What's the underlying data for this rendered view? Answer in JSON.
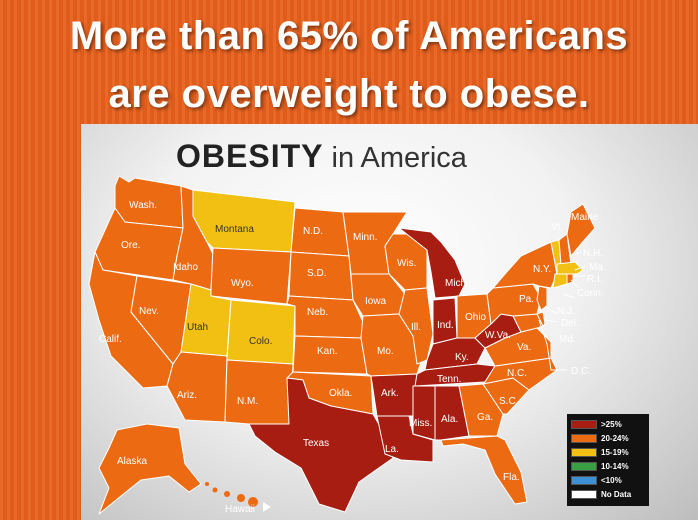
{
  "headline": {
    "line1": "More than 65% of Americans",
    "line2": "are overweight to obese."
  },
  "map": {
    "title_bold": "OBESITY",
    "title_rest": " in America",
    "colors": {
      "gt25": "#a81d12",
      "c20_24": "#ec6a12",
      "c15_19": "#f2c012",
      "c10_14": "#39a043",
      "lt10": "#3d8fd6",
      "nodata": "#ffffff"
    },
    "states": {
      "wash": {
        "label": "Wash.",
        "category": "20-24%"
      },
      "ore": {
        "label": "Ore.",
        "category": "20-24%"
      },
      "calif": {
        "label": "Calif.",
        "category": "20-24%"
      },
      "nev": {
        "label": "Nev.",
        "category": "20-24%"
      },
      "idaho": {
        "label": "Idaho",
        "category": "20-24%"
      },
      "montana": {
        "label": "Montana",
        "category": "15-19%"
      },
      "wyo": {
        "label": "Wyo.",
        "category": "20-24%"
      },
      "utah": {
        "label": "Utah",
        "category": "15-19%"
      },
      "colo": {
        "label": "Colo.",
        "category": "15-19%"
      },
      "ariz": {
        "label": "Ariz.",
        "category": "20-24%"
      },
      "nm": {
        "label": "N.M.",
        "category": "20-24%"
      },
      "nd": {
        "label": "N.D.",
        "category": "20-24%"
      },
      "sd": {
        "label": "S.D.",
        "category": "20-24%"
      },
      "neb": {
        "label": "Neb.",
        "category": "20-24%"
      },
      "kan": {
        "label": "Kan.",
        "category": "20-24%"
      },
      "okla": {
        "label": "Okla.",
        "category": "20-24%"
      },
      "texas": {
        "label": "Texas",
        "category": ">25%"
      },
      "minn": {
        "label": "Minn.",
        "category": "20-24%"
      },
      "iowa": {
        "label": "Iowa",
        "category": "20-24%"
      },
      "mo": {
        "label": "Mo.",
        "category": "20-24%"
      },
      "ark": {
        "label": "Ark.",
        "category": ">25%"
      },
      "la": {
        "label": "La.",
        "category": ">25%"
      },
      "wis": {
        "label": "Wis.",
        "category": "20-24%"
      },
      "ill": {
        "label": "Ill.",
        "category": "20-24%"
      },
      "mich": {
        "label": "Mich.",
        "category": ">25%"
      },
      "ind": {
        "label": "Ind.",
        "category": ">25%"
      },
      "ohio": {
        "label": "Ohio",
        "category": "20-24%"
      },
      "ky": {
        "label": "Ky.",
        "category": ">25%"
      },
      "tenn": {
        "label": "Tenn.",
        "category": ">25%"
      },
      "miss": {
        "label": "Miss.",
        "category": ">25%"
      },
      "ala": {
        "label": "Ala.",
        "category": ">25%"
      },
      "ga": {
        "label": "Ga.",
        "category": "20-24%"
      },
      "fla": {
        "label": "Fla.",
        "category": "20-24%"
      },
      "sc": {
        "label": "S.C.",
        "category": "20-24%"
      },
      "nc": {
        "label": "N.C.",
        "category": "20-24%"
      },
      "va": {
        "label": "Va.",
        "category": "20-24%"
      },
      "wva": {
        "label": "W.Va.",
        "category": ">25%"
      },
      "pa": {
        "label": "Pa.",
        "category": "20-24%"
      },
      "ny": {
        "label": "N.Y.",
        "category": "20-24%"
      },
      "vt": {
        "label": "Vt.",
        "category": "15-19%"
      },
      "maine": {
        "label": "Maine",
        "category": "20-24%"
      },
      "nh": {
        "label": "N.H.",
        "category": "20-24%"
      },
      "ma": {
        "label": "Ma.",
        "category": "15-19%"
      },
      "ri": {
        "label": "R.I.",
        "category": "20-24%"
      },
      "conn": {
        "label": "Conn.",
        "category": "15-19%"
      },
      "nj": {
        "label": "N.J.",
        "category": "20-24%"
      },
      "del": {
        "label": "Del.",
        "category": "20-24%"
      },
      "md": {
        "label": "Md.",
        "category": "20-24%"
      },
      "dc": {
        "label": "D.C.",
        "category": "20-24%"
      },
      "alaska": {
        "label": "Alaska",
        "category": "20-24%"
      },
      "hawaii": {
        "label": "Hawaii",
        "category": "20-24%"
      }
    },
    "legend": [
      {
        "label": ">25%",
        "color": "#a81d12"
      },
      {
        "label": "20-24%",
        "color": "#ec6a12"
      },
      {
        "label": "15-19%",
        "color": "#f2c012"
      },
      {
        "label": "10-14%",
        "color": "#39a043"
      },
      {
        "label": "<10%",
        "color": "#3d8fd6"
      },
      {
        "label": "No Data",
        "color": "#ffffff"
      }
    ]
  }
}
